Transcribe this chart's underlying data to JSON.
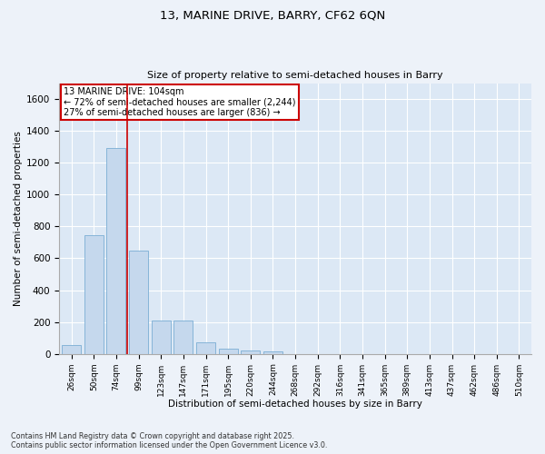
{
  "title1": "13, MARINE DRIVE, BARRY, CF62 6QN",
  "title2": "Size of property relative to semi-detached houses in Barry",
  "xlabel": "Distribution of semi-detached houses by size in Barry",
  "ylabel": "Number of semi-detached properties",
  "categories": [
    "26sqm",
    "50sqm",
    "74sqm",
    "99sqm",
    "123sqm",
    "147sqm",
    "171sqm",
    "195sqm",
    "220sqm",
    "244sqm",
    "268sqm",
    "292sqm",
    "316sqm",
    "341sqm",
    "365sqm",
    "389sqm",
    "413sqm",
    "437sqm",
    "462sqm",
    "486sqm",
    "510sqm"
  ],
  "values": [
    55,
    745,
    1295,
    650,
    210,
    210,
    75,
    35,
    20,
    15,
    0,
    0,
    0,
    0,
    0,
    0,
    0,
    0,
    0,
    0,
    0
  ],
  "bar_color": "#c5d8ed",
  "bar_edge_color": "#7aadd4",
  "vline_color": "#cc0000",
  "vline_x_index": 2.5,
  "annotation_title": "13 MARINE DRIVE: 104sqm",
  "annotation_line2": "← 72% of semi-detached houses are smaller (2,244)",
  "annotation_line3": "27% of semi-detached houses are larger (836) →",
  "annotation_box_color": "#cc0000",
  "ylim": [
    0,
    1700
  ],
  "yticks": [
    0,
    200,
    400,
    600,
    800,
    1000,
    1200,
    1400,
    1600
  ],
  "footnote1": "Contains HM Land Registry data © Crown copyright and database right 2025.",
  "footnote2": "Contains public sector information licensed under the Open Government Licence v3.0.",
  "bg_color": "#edf2f9",
  "plot_bg_color": "#dce8f5"
}
